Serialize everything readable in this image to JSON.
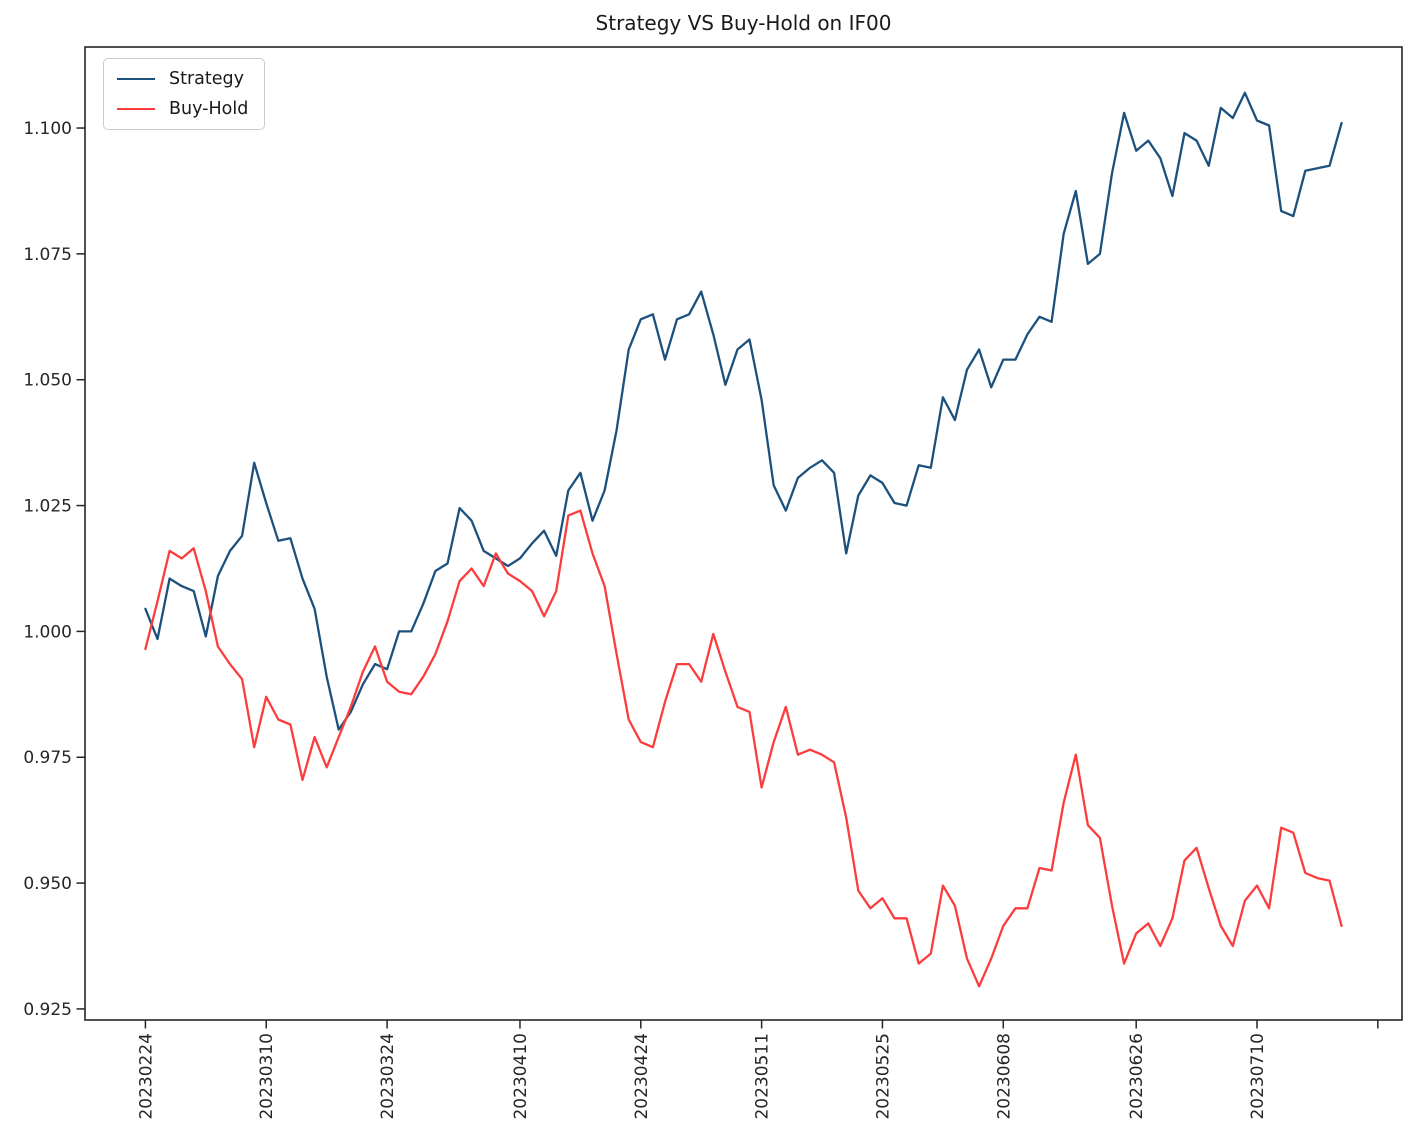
{
  "title": "Strategy VS Buy-Hold on IF00",
  "legend": {
    "items": [
      {
        "label": "Strategy"
      },
      {
        "label": "Buy-Hold"
      }
    ]
  },
  "colors": {
    "strategy": "#1d517d",
    "buy_hold": "#fc3d3d",
    "axis": "#262626",
    "tick_text": "#262626"
  },
  "chart_data": {
    "type": "line",
    "title": "Strategy VS Buy-Hold on IF00",
    "xlabel": "",
    "ylabel": "",
    "grid": false,
    "legend_position": "upper left",
    "xlim": [
      -5,
      104
    ],
    "ylim": [
      0.9228,
      1.1161
    ],
    "y_ticks": [
      0.925,
      0.95,
      0.975,
      1.0,
      1.025,
      1.05,
      1.075,
      1.1
    ],
    "x_tick_positions": [
      0,
      10,
      20,
      31,
      41,
      51,
      61,
      71,
      82,
      92,
      102
    ],
    "x_tick_labels": [
      "20230224",
      "20230310",
      "20230324",
      "20230410",
      "20230424",
      "20230511",
      "20230525",
      "20230608",
      "20230626",
      "20230710",
      ""
    ],
    "series": [
      {
        "name": "Strategy",
        "color": "#1d517d",
        "values": [
          1.0045,
          0.9985,
          1.0105,
          1.009,
          1.008,
          0.999,
          1.011,
          1.016,
          1.019,
          1.0335,
          1.0255,
          1.018,
          1.0185,
          1.0105,
          1.0045,
          0.991,
          0.9805,
          0.984,
          0.9895,
          0.9935,
          0.9925,
          1.0,
          1.0,
          1.0055,
          1.012,
          1.0135,
          1.0245,
          1.022,
          1.016,
          1.0145,
          1.013,
          1.0145,
          1.0175,
          1.02,
          1.015,
          1.028,
          1.0315,
          1.022,
          1.028,
          1.04,
          1.056,
          1.062,
          1.063,
          1.054,
          1.062,
          1.063,
          1.0675,
          1.059,
          1.049,
          1.056,
          1.058,
          1.046,
          1.029,
          1.024,
          1.0305,
          1.0325,
          1.034,
          1.0315,
          1.0155,
          1.027,
          1.031,
          1.0295,
          1.0255,
          1.025,
          1.033,
          1.0325,
          1.0465,
          1.042,
          1.052,
          1.056,
          1.0485,
          1.054,
          1.054,
          1.059,
          1.0625,
          1.0615,
          1.079,
          1.0875,
          1.073,
          1.075,
          1.091,
          1.103,
          1.0955,
          1.0975,
          1.094,
          1.0865,
          1.099,
          1.0975,
          1.0925,
          1.104,
          1.102,
          1.107,
          1.1015,
          1.1005,
          1.0835,
          1.0825,
          1.0915,
          1.092,
          1.0925,
          1.101
        ]
      },
      {
        "name": "Buy-Hold",
        "color": "#fc3d3d",
        "values": [
          0.9965,
          1.006,
          1.016,
          1.0145,
          1.0165,
          1.008,
          0.997,
          0.9935,
          0.9905,
          0.977,
          0.987,
          0.9825,
          0.9815,
          0.9705,
          0.979,
          0.973,
          0.979,
          0.985,
          0.992,
          0.997,
          0.99,
          0.988,
          0.9875,
          0.991,
          0.9955,
          1.002,
          1.01,
          1.0125,
          1.009,
          1.0155,
          1.0115,
          1.01,
          1.008,
          1.003,
          1.008,
          1.023,
          1.024,
          1.0155,
          1.009,
          0.9955,
          0.9825,
          0.978,
          0.977,
          0.986,
          0.9935,
          0.9935,
          0.99,
          0.9995,
          0.992,
          0.985,
          0.984,
          0.969,
          0.978,
          0.985,
          0.9755,
          0.9765,
          0.9755,
          0.974,
          0.963,
          0.9485,
          0.945,
          0.947,
          0.943,
          0.943,
          0.934,
          0.936,
          0.9495,
          0.9455,
          0.935,
          0.9295,
          0.935,
          0.9415,
          0.945,
          0.945,
          0.953,
          0.9525,
          0.966,
          0.9755,
          0.9615,
          0.959,
          0.9455,
          0.934,
          0.94,
          0.942,
          0.9375,
          0.943,
          0.9545,
          0.957,
          0.949,
          0.9415,
          0.9375,
          0.9465,
          0.9495,
          0.945,
          0.961,
          0.96,
          0.952,
          0.951,
          0.9505,
          0.9415
        ]
      }
    ]
  }
}
